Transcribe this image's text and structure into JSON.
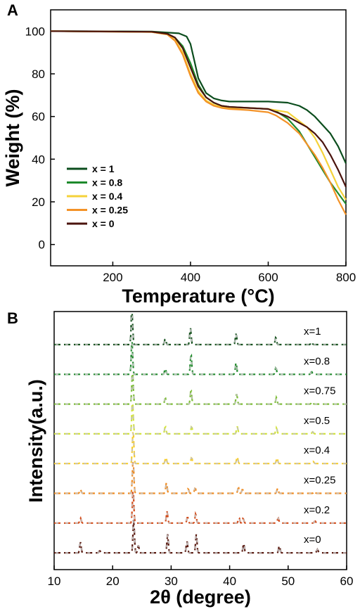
{
  "chart_data": [
    {
      "panel": "A",
      "type": "line",
      "xlabel": "Temperature (°C)",
      "ylabel": "Weight (%)",
      "xlim": [
        40,
        800
      ],
      "ylim": [
        -10,
        110
      ],
      "xticks": [
        200,
        400,
        600,
        800
      ],
      "yticks": [
        0,
        20,
        40,
        60,
        80,
        100
      ],
      "legend_position": "lower-left",
      "series": [
        {
          "name": "x = 1",
          "color": "#0b4d1d",
          "x": [
            40,
            300,
            370,
            390,
            400,
            410,
            420,
            440,
            460,
            480,
            500,
            550,
            600,
            650,
            680,
            700,
            720,
            740,
            760,
            780,
            800
          ],
          "y": [
            100,
            99.8,
            99,
            97.5,
            94,
            86,
            78,
            71,
            68.5,
            67.5,
            67,
            67,
            67,
            66.5,
            65,
            63,
            60,
            56,
            52,
            46,
            38
          ]
        },
        {
          "name": "x = 0.8",
          "color": "#1e8a2c",
          "x": [
            40,
            300,
            340,
            360,
            380,
            400,
            420,
            440,
            460,
            480,
            500,
            550,
            600,
            620,
            650,
            680,
            700,
            720,
            740,
            760,
            780,
            800
          ],
          "y": [
            100,
            99.7,
            98.8,
            97,
            93,
            85,
            75,
            69,
            66.5,
            65,
            64.5,
            64,
            63.5,
            62.5,
            59,
            53,
            47,
            41,
            35,
            29,
            24,
            19
          ]
        },
        {
          "name": "x = 0.4",
          "color": "#f5d23a",
          "x": [
            40,
            300,
            340,
            360,
            380,
            400,
            420,
            440,
            460,
            480,
            500,
            550,
            600,
            650,
            700,
            720,
            740,
            760,
            780,
            800
          ],
          "y": [
            100,
            99.6,
            98.5,
            96,
            90,
            80,
            72,
            67.5,
            65.5,
            64.5,
            64,
            64,
            63.5,
            62,
            55,
            50,
            43,
            35,
            27,
            21
          ]
        },
        {
          "name": "x = 0.25",
          "color": "#f39227",
          "x": [
            40,
            300,
            340,
            360,
            380,
            400,
            420,
            440,
            460,
            480,
            500,
            550,
            600,
            620,
            650,
            680,
            700,
            720,
            740,
            760,
            780,
            800
          ],
          "y": [
            100,
            99.6,
            98.5,
            95.5,
            89,
            79,
            71,
            67,
            65,
            64,
            63.5,
            63,
            62,
            60.5,
            57,
            52,
            47,
            42,
            36,
            29,
            21,
            14
          ]
        },
        {
          "name": "x = 0",
          "color": "#4a130d",
          "x": [
            40,
            300,
            340,
            360,
            380,
            400,
            420,
            440,
            460,
            480,
            500,
            550,
            600,
            650,
            680,
            700,
            720,
            740,
            760,
            780,
            800
          ],
          "y": [
            100,
            99.7,
            98.8,
            97,
            92,
            83,
            74,
            69,
            66.5,
            65,
            64.5,
            64,
            63.5,
            60,
            57,
            55,
            52,
            48,
            42,
            35,
            27
          ]
        }
      ]
    },
    {
      "panel": "B",
      "type": "line",
      "xlabel": "2θ (degree)",
      "ylabel": "Intensity(a.u.)",
      "xlim": [
        10,
        60
      ],
      "xticks": [
        10,
        20,
        30,
        40,
        50,
        60
      ],
      "reference_color": "#c2c2c2",
      "series": [
        {
          "name": "x=1",
          "color": "#16521e",
          "peaks": [
            [
              23.3,
              1.15
            ],
            [
              29.0,
              0.18
            ],
            [
              33.3,
              0.5
            ],
            [
              41.1,
              0.33
            ],
            [
              47.9,
              0.22
            ],
            [
              54.0,
              0.08
            ]
          ]
        },
        {
          "name": "x=0.8",
          "color": "#1f8a2b",
          "peaks": [
            [
              23.3,
              1.0
            ],
            [
              29.0,
              0.18
            ],
            [
              33.4,
              0.6
            ],
            [
              41.1,
              0.35
            ],
            [
              47.9,
              0.2
            ],
            [
              54.0,
              0.08
            ]
          ]
        },
        {
          "name": "x=0.75",
          "color": "#7cbd36",
          "peaks": [
            [
              23.4,
              1.0
            ],
            [
              29.0,
              0.18
            ],
            [
              33.4,
              0.42
            ],
            [
              41.2,
              0.3
            ],
            [
              48.0,
              0.2
            ],
            [
              54.1,
              0.07
            ]
          ]
        },
        {
          "name": "x=0.5",
          "color": "#d2e33b",
          "peaks": [
            [
              23.4,
              1.0
            ],
            [
              29.0,
              0.22
            ],
            [
              33.5,
              0.22
            ],
            [
              41.3,
              0.22
            ],
            [
              48.0,
              0.18
            ],
            [
              54.2,
              0.06
            ]
          ]
        },
        {
          "name": "x=0.4",
          "color": "#f7cd2c",
          "peaks": [
            [
              14.5,
              0.05
            ],
            [
              23.5,
              1.0
            ],
            [
              29.1,
              0.2
            ],
            [
              33.5,
              0.18
            ],
            [
              41.3,
              0.2
            ],
            [
              48.1,
              0.17
            ],
            [
              54.3,
              0.06
            ]
          ]
        },
        {
          "name": "x=0.25",
          "color": "#f08a1e",
          "peaks": [
            [
              14.5,
              0.12
            ],
            [
              23.5,
              1.0
            ],
            [
              29.2,
              0.32
            ],
            [
              32.9,
              0.14
            ],
            [
              34.1,
              0.16
            ],
            [
              41.5,
              0.17
            ],
            [
              42.2,
              0.12
            ],
            [
              48.2,
              0.15
            ],
            [
              54.5,
              0.06
            ]
          ]
        },
        {
          "name": "x=0.2",
          "color": "#d24a18",
          "peaks": [
            [
              14.5,
              0.15
            ],
            [
              23.5,
              1.0
            ],
            [
              29.3,
              0.35
            ],
            [
              32.8,
              0.18
            ],
            [
              34.2,
              0.28
            ],
            [
              41.6,
              0.17
            ],
            [
              42.3,
              0.14
            ],
            [
              48.3,
              0.15
            ],
            [
              54.6,
              0.06
            ]
          ]
        },
        {
          "name": "x=0",
          "color": "#5a1a10",
          "peaks": [
            [
              14.5,
              0.32
            ],
            [
              17.8,
              0.06
            ],
            [
              23.6,
              1.0
            ],
            [
              24.4,
              0.22
            ],
            [
              29.4,
              0.55
            ],
            [
              32.7,
              0.35
            ],
            [
              34.3,
              0.55
            ],
            [
              42.4,
              0.28
            ],
            [
              48.5,
              0.22
            ],
            [
              55.0,
              0.1
            ]
          ]
        }
      ]
    }
  ],
  "panel_labels": [
    "A",
    "B"
  ],
  "legend": [
    "x = 1",
    "x = 0.8",
    "x = 0.4",
    "x = 0.25",
    "x = 0"
  ]
}
